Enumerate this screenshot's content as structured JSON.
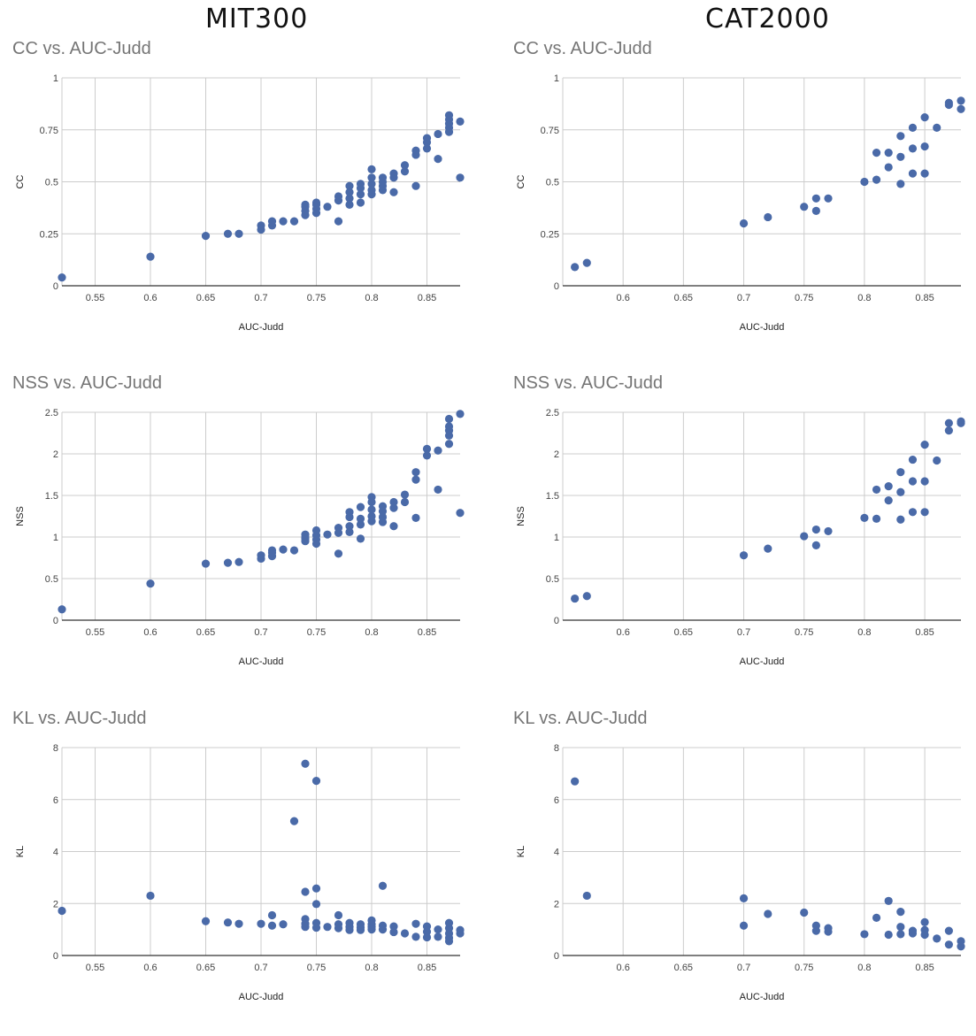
{
  "headings": {
    "left": "MIT300",
    "right": "CAT2000"
  },
  "colors": {
    "marker": "#4a6aa8",
    "grid": "#cccccc",
    "axis": "#333333"
  },
  "chart_data": [
    {
      "dataset": "MIT300",
      "type": "scatter",
      "title": "CC vs. AUC-Judd",
      "xlabel": "AUC-Judd",
      "ylabel": "CC",
      "xlim": [
        0.52,
        0.88
      ],
      "ylim": [
        0,
        1
      ],
      "xticks": [
        0.55,
        0.6,
        0.65,
        0.7,
        0.75,
        0.8,
        0.85
      ],
      "xtick_labels": [
        "0.55",
        "0.6",
        "0.65",
        "0.7",
        "0.75",
        "0.8",
        "0.85"
      ],
      "yticks": [
        0,
        0.25,
        0.5,
        0.75,
        1
      ],
      "ytick_labels": [
        "0",
        "0.25",
        "0.5",
        "0.75",
        "1"
      ],
      "grid": true,
      "points": [
        [
          0.52,
          0.04
        ],
        [
          0.6,
          0.14
        ],
        [
          0.65,
          0.24
        ],
        [
          0.67,
          0.25
        ],
        [
          0.68,
          0.25
        ],
        [
          0.7,
          0.27
        ],
        [
          0.7,
          0.29
        ],
        [
          0.71,
          0.29
        ],
        [
          0.71,
          0.31
        ],
        [
          0.72,
          0.31
        ],
        [
          0.73,
          0.31
        ],
        [
          0.74,
          0.34
        ],
        [
          0.74,
          0.36
        ],
        [
          0.74,
          0.38
        ],
        [
          0.74,
          0.39
        ],
        [
          0.75,
          0.35
        ],
        [
          0.75,
          0.37
        ],
        [
          0.75,
          0.39
        ],
        [
          0.75,
          0.4
        ],
        [
          0.76,
          0.38
        ],
        [
          0.77,
          0.31
        ],
        [
          0.77,
          0.41
        ],
        [
          0.77,
          0.43
        ],
        [
          0.78,
          0.39
        ],
        [
          0.78,
          0.42
        ],
        [
          0.78,
          0.45
        ],
        [
          0.78,
          0.48
        ],
        [
          0.79,
          0.4
        ],
        [
          0.79,
          0.44
        ],
        [
          0.79,
          0.47
        ],
        [
          0.79,
          0.49
        ],
        [
          0.8,
          0.44
        ],
        [
          0.8,
          0.46
        ],
        [
          0.8,
          0.49
        ],
        [
          0.8,
          0.52
        ],
        [
          0.8,
          0.56
        ],
        [
          0.81,
          0.46
        ],
        [
          0.81,
          0.48
        ],
        [
          0.81,
          0.5
        ],
        [
          0.81,
          0.52
        ],
        [
          0.82,
          0.45
        ],
        [
          0.82,
          0.52
        ],
        [
          0.82,
          0.54
        ],
        [
          0.83,
          0.55
        ],
        [
          0.83,
          0.58
        ],
        [
          0.84,
          0.48
        ],
        [
          0.84,
          0.63
        ],
        [
          0.84,
          0.65
        ],
        [
          0.85,
          0.66
        ],
        [
          0.85,
          0.69
        ],
        [
          0.85,
          0.71
        ],
        [
          0.86,
          0.61
        ],
        [
          0.86,
          0.73
        ],
        [
          0.87,
          0.74
        ],
        [
          0.87,
          0.76
        ],
        [
          0.87,
          0.78
        ],
        [
          0.87,
          0.8
        ],
        [
          0.87,
          0.82
        ],
        [
          0.88,
          0.52
        ],
        [
          0.88,
          0.79
        ]
      ]
    },
    {
      "dataset": "CAT2000",
      "type": "scatter",
      "title": "CC vs. AUC-Judd",
      "xlabel": "AUC-Judd",
      "ylabel": "CC",
      "xlim": [
        0.55,
        0.88
      ],
      "ylim": [
        0,
        1
      ],
      "xticks": [
        0.6,
        0.65,
        0.7,
        0.75,
        0.8,
        0.85
      ],
      "xtick_labels": [
        "0.6",
        "0.65",
        "0.7",
        "0.75",
        "0.8",
        "0.85"
      ],
      "yticks": [
        0,
        0.25,
        0.5,
        0.75,
        1
      ],
      "ytick_labels": [
        "0",
        "0.25",
        "0.5",
        "0.75",
        "1"
      ],
      "grid": true,
      "points": [
        [
          0.56,
          0.09
        ],
        [
          0.57,
          0.11
        ],
        [
          0.7,
          0.3
        ],
        [
          0.72,
          0.33
        ],
        [
          0.75,
          0.38
        ],
        [
          0.76,
          0.36
        ],
        [
          0.76,
          0.42
        ],
        [
          0.77,
          0.42
        ],
        [
          0.8,
          0.5
        ],
        [
          0.81,
          0.51
        ],
        [
          0.81,
          0.64
        ],
        [
          0.82,
          0.57
        ],
        [
          0.82,
          0.64
        ],
        [
          0.83,
          0.49
        ],
        [
          0.83,
          0.62
        ],
        [
          0.83,
          0.72
        ],
        [
          0.84,
          0.54
        ],
        [
          0.84,
          0.66
        ],
        [
          0.84,
          0.76
        ],
        [
          0.85,
          0.54
        ],
        [
          0.85,
          0.67
        ],
        [
          0.85,
          0.81
        ],
        [
          0.86,
          0.76
        ],
        [
          0.87,
          0.87
        ],
        [
          0.87,
          0.88
        ],
        [
          0.88,
          0.85
        ],
        [
          0.88,
          0.89
        ]
      ]
    },
    {
      "dataset": "MIT300",
      "type": "scatter",
      "title": "NSS vs. AUC-Judd",
      "xlabel": "AUC-Judd",
      "ylabel": "NSS",
      "xlim": [
        0.52,
        0.88
      ],
      "ylim": [
        0,
        2.5
      ],
      "xticks": [
        0.55,
        0.6,
        0.65,
        0.7,
        0.75,
        0.8,
        0.85
      ],
      "xtick_labels": [
        "0.55",
        "0.6",
        "0.65",
        "0.7",
        "0.75",
        "0.8",
        "0.85"
      ],
      "yticks": [
        0,
        0.5,
        1,
        1.5,
        2,
        2.5
      ],
      "ytick_labels": [
        "0",
        "0.5",
        "1",
        "1.5",
        "2",
        "2.5"
      ],
      "grid": true,
      "points": [
        [
          0.52,
          0.13
        ],
        [
          0.6,
          0.44
        ],
        [
          0.65,
          0.68
        ],
        [
          0.67,
          0.69
        ],
        [
          0.68,
          0.7
        ],
        [
          0.7,
          0.74
        ],
        [
          0.7,
          0.78
        ],
        [
          0.71,
          0.77
        ],
        [
          0.71,
          0.81
        ],
        [
          0.71,
          0.84
        ],
        [
          0.72,
          0.85
        ],
        [
          0.73,
          0.84
        ],
        [
          0.74,
          0.95
        ],
        [
          0.74,
          0.98
        ],
        [
          0.74,
          1.0
        ],
        [
          0.74,
          1.03
        ],
        [
          0.75,
          0.92
        ],
        [
          0.75,
          0.97
        ],
        [
          0.75,
          1.02
        ],
        [
          0.75,
          1.08
        ],
        [
          0.76,
          1.03
        ],
        [
          0.77,
          0.8
        ],
        [
          0.77,
          1.05
        ],
        [
          0.77,
          1.11
        ],
        [
          0.78,
          1.06
        ],
        [
          0.78,
          1.13
        ],
        [
          0.78,
          1.24
        ],
        [
          0.78,
          1.3
        ],
        [
          0.79,
          0.98
        ],
        [
          0.79,
          1.15
        ],
        [
          0.79,
          1.22
        ],
        [
          0.79,
          1.36
        ],
        [
          0.8,
          1.19
        ],
        [
          0.8,
          1.25
        ],
        [
          0.8,
          1.33
        ],
        [
          0.8,
          1.42
        ],
        [
          0.8,
          1.48
        ],
        [
          0.81,
          1.18
        ],
        [
          0.81,
          1.24
        ],
        [
          0.81,
          1.31
        ],
        [
          0.81,
          1.37
        ],
        [
          0.82,
          1.13
        ],
        [
          0.82,
          1.35
        ],
        [
          0.82,
          1.42
        ],
        [
          0.83,
          1.42
        ],
        [
          0.83,
          1.51
        ],
        [
          0.84,
          1.23
        ],
        [
          0.84,
          1.69
        ],
        [
          0.84,
          1.78
        ],
        [
          0.85,
          1.98
        ],
        [
          0.85,
          2.06
        ],
        [
          0.86,
          1.57
        ],
        [
          0.86,
          2.04
        ],
        [
          0.87,
          2.12
        ],
        [
          0.87,
          2.22
        ],
        [
          0.87,
          2.28
        ],
        [
          0.87,
          2.33
        ],
        [
          0.87,
          2.42
        ],
        [
          0.88,
          1.29
        ],
        [
          0.88,
          2.48
        ]
      ]
    },
    {
      "dataset": "CAT2000",
      "type": "scatter",
      "title": "NSS vs. AUC-Judd",
      "xlabel": "AUC-Judd",
      "ylabel": "NSS",
      "xlim": [
        0.55,
        0.88
      ],
      "ylim": [
        0,
        2.5
      ],
      "xticks": [
        0.6,
        0.65,
        0.7,
        0.75,
        0.8,
        0.85
      ],
      "xtick_labels": [
        "0.6",
        "0.65",
        "0.7",
        "0.75",
        "0.8",
        "0.85"
      ],
      "yticks": [
        0,
        0.5,
        1,
        1.5,
        2,
        2.5
      ],
      "ytick_labels": [
        "0",
        "0.5",
        "1",
        "1.5",
        "2",
        "2.5"
      ],
      "grid": true,
      "points": [
        [
          0.56,
          0.26
        ],
        [
          0.57,
          0.29
        ],
        [
          0.7,
          0.78
        ],
        [
          0.72,
          0.86
        ],
        [
          0.75,
          1.01
        ],
        [
          0.76,
          0.9
        ],
        [
          0.76,
          1.09
        ],
        [
          0.77,
          1.07
        ],
        [
          0.8,
          1.23
        ],
        [
          0.81,
          1.22
        ],
        [
          0.81,
          1.57
        ],
        [
          0.82,
          1.44
        ],
        [
          0.82,
          1.61
        ],
        [
          0.83,
          1.21
        ],
        [
          0.83,
          1.54
        ],
        [
          0.83,
          1.78
        ],
        [
          0.84,
          1.3
        ],
        [
          0.84,
          1.67
        ],
        [
          0.84,
          1.93
        ],
        [
          0.85,
          1.3
        ],
        [
          0.85,
          1.67
        ],
        [
          0.85,
          2.11
        ],
        [
          0.86,
          1.92
        ],
        [
          0.87,
          2.28
        ],
        [
          0.87,
          2.37
        ],
        [
          0.88,
          2.37
        ],
        [
          0.88,
          2.39
        ]
      ]
    },
    {
      "dataset": "MIT300",
      "type": "scatter",
      "title": "KL vs. AUC-Judd",
      "xlabel": "AUC-Judd",
      "ylabel": "KL",
      "xlim": [
        0.52,
        0.88
      ],
      "ylim": [
        0,
        8
      ],
      "xticks": [
        0.55,
        0.6,
        0.65,
        0.7,
        0.75,
        0.8,
        0.85
      ],
      "xtick_labels": [
        "0.55",
        "0.6",
        "0.65",
        "0.7",
        "0.75",
        "0.8",
        "0.85"
      ],
      "yticks": [
        0,
        2,
        4,
        6,
        8
      ],
      "ytick_labels": [
        "0",
        "2",
        "4",
        "6",
        "8"
      ],
      "grid": true,
      "points": [
        [
          0.52,
          1.72
        ],
        [
          0.6,
          2.3
        ],
        [
          0.65,
          1.32
        ],
        [
          0.67,
          1.27
        ],
        [
          0.68,
          1.22
        ],
        [
          0.7,
          1.22
        ],
        [
          0.71,
          1.55
        ],
        [
          0.71,
          1.15
        ],
        [
          0.72,
          1.2
        ],
        [
          0.73,
          5.17
        ],
        [
          0.74,
          7.38
        ],
        [
          0.74,
          2.45
        ],
        [
          0.74,
          1.4
        ],
        [
          0.74,
          1.22
        ],
        [
          0.74,
          1.1
        ],
        [
          0.75,
          6.72
        ],
        [
          0.75,
          2.58
        ],
        [
          0.75,
          1.98
        ],
        [
          0.75,
          1.25
        ],
        [
          0.75,
          1.07
        ],
        [
          0.76,
          1.1
        ],
        [
          0.77,
          1.55
        ],
        [
          0.77,
          1.2
        ],
        [
          0.77,
          1.05
        ],
        [
          0.78,
          1.25
        ],
        [
          0.78,
          1.1
        ],
        [
          0.78,
          0.98
        ],
        [
          0.79,
          1.2
        ],
        [
          0.79,
          1.08
        ],
        [
          0.79,
          0.98
        ],
        [
          0.8,
          1.35
        ],
        [
          0.8,
          1.2
        ],
        [
          0.8,
          1.1
        ],
        [
          0.8,
          1.0
        ],
        [
          0.81,
          2.68
        ],
        [
          0.81,
          1.15
        ],
        [
          0.81,
          1.0
        ],
        [
          0.82,
          1.12
        ],
        [
          0.82,
          0.9
        ],
        [
          0.83,
          0.85
        ],
        [
          0.84,
          1.22
        ],
        [
          0.84,
          0.72
        ],
        [
          0.85,
          1.12
        ],
        [
          0.85,
          0.92
        ],
        [
          0.85,
          0.7
        ],
        [
          0.86,
          1.0
        ],
        [
          0.86,
          0.72
        ],
        [
          0.87,
          1.25
        ],
        [
          0.87,
          1.05
        ],
        [
          0.87,
          0.85
        ],
        [
          0.87,
          0.68
        ],
        [
          0.87,
          0.55
        ],
        [
          0.88,
          0.98
        ],
        [
          0.88,
          0.85
        ]
      ]
    },
    {
      "dataset": "CAT2000",
      "type": "scatter",
      "title": "KL vs. AUC-Judd",
      "xlabel": "AUC-Judd",
      "ylabel": "KL",
      "xlim": [
        0.55,
        0.88
      ],
      "ylim": [
        0,
        8
      ],
      "xticks": [
        0.6,
        0.65,
        0.7,
        0.75,
        0.8,
        0.85
      ],
      "xtick_labels": [
        "0.6",
        "0.65",
        "0.7",
        "0.75",
        "0.8",
        "0.85"
      ],
      "yticks": [
        0,
        2,
        4,
        6,
        8
      ],
      "ytick_labels": [
        "0",
        "2",
        "4",
        "6",
        "8"
      ],
      "grid": true,
      "points": [
        [
          0.56,
          6.7
        ],
        [
          0.57,
          2.3
        ],
        [
          0.7,
          2.2
        ],
        [
          0.7,
          1.15
        ],
        [
          0.72,
          1.6
        ],
        [
          0.75,
          1.65
        ],
        [
          0.76,
          1.15
        ],
        [
          0.76,
          0.95
        ],
        [
          0.77,
          1.05
        ],
        [
          0.77,
          0.92
        ],
        [
          0.8,
          0.82
        ],
        [
          0.81,
          1.45
        ],
        [
          0.82,
          2.1
        ],
        [
          0.82,
          0.8
        ],
        [
          0.83,
          1.68
        ],
        [
          0.83,
          1.1
        ],
        [
          0.83,
          0.82
        ],
        [
          0.84,
          0.95
        ],
        [
          0.84,
          0.85
        ],
        [
          0.85,
          1.28
        ],
        [
          0.85,
          0.98
        ],
        [
          0.85,
          0.8
        ],
        [
          0.86,
          0.65
        ],
        [
          0.87,
          0.95
        ],
        [
          0.87,
          0.42
        ],
        [
          0.88,
          0.55
        ],
        [
          0.88,
          0.35
        ]
      ]
    }
  ]
}
